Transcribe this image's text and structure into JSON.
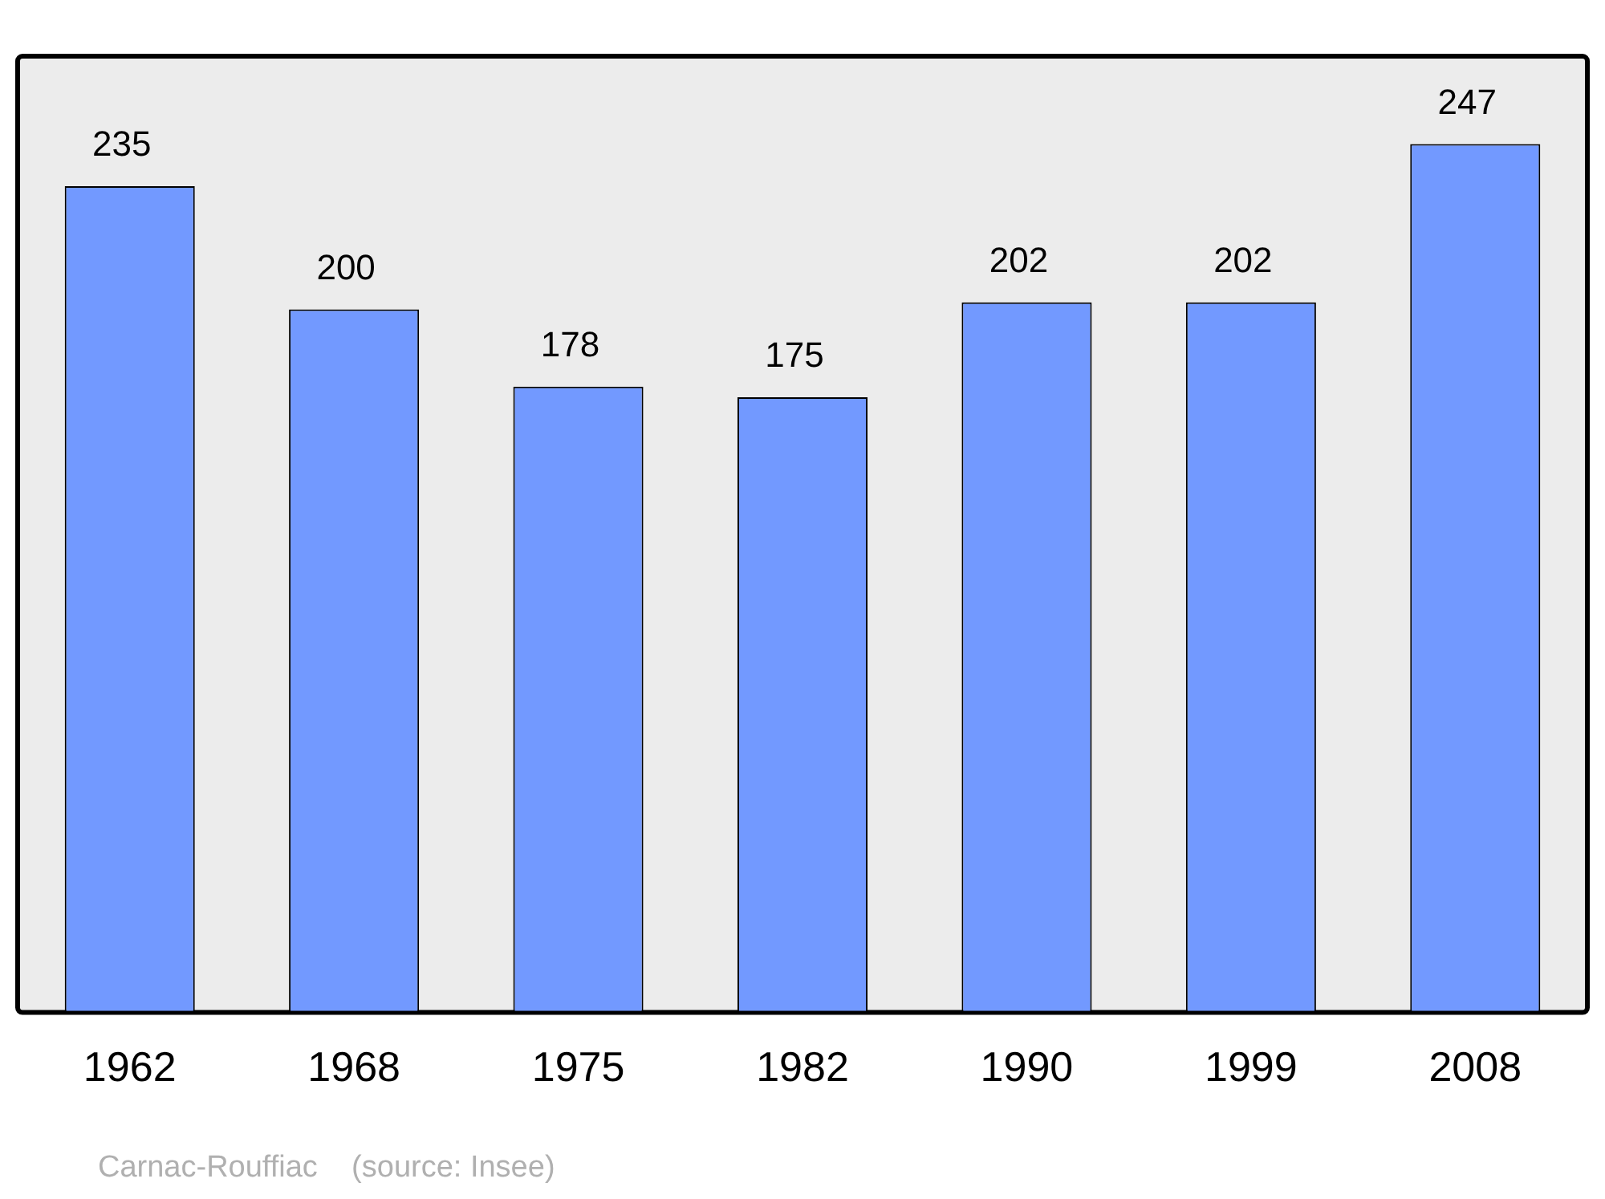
{
  "chart_data": {
    "type": "bar",
    "categories": [
      "1962",
      "1968",
      "1975",
      "1982",
      "1990",
      "1999",
      "2008"
    ],
    "values": [
      235,
      200,
      178,
      175,
      202,
      202,
      247
    ],
    "color": "#7299ff",
    "ylim": [
      0,
      272
    ],
    "tick_labels": "x",
    "grid": false,
    "legend": false,
    "data_labels": true,
    "annotations": [
      "Carnac-Rouffiac    (source: Insee)"
    ]
  }
}
